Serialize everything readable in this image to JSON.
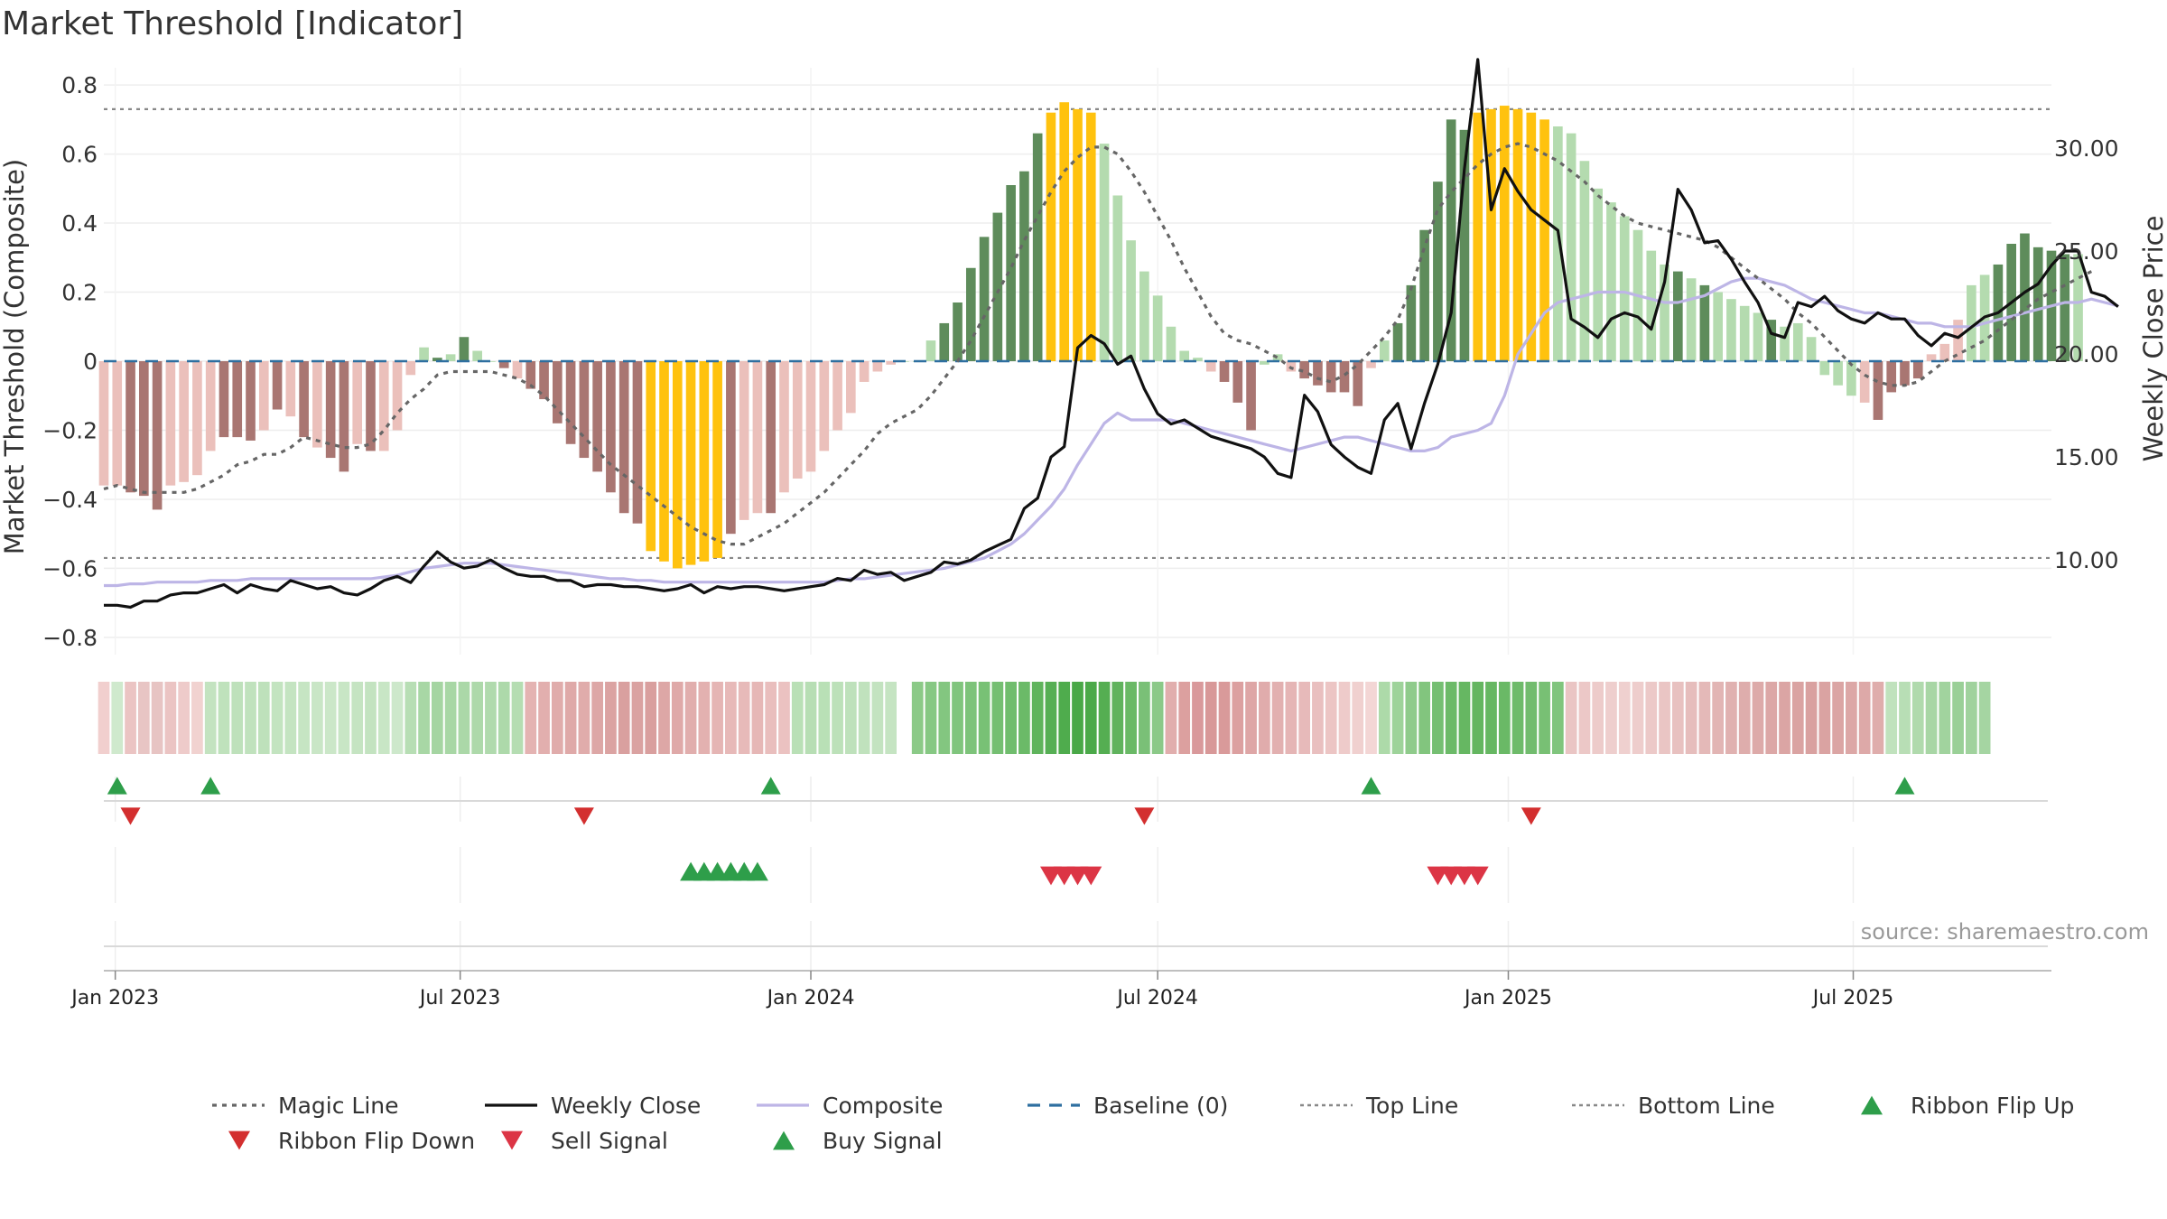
{
  "title": "Market Threshold [Indicator]",
  "source": "source: sharemaestro.com",
  "colors": {
    "bar_red_dark": "#A97672",
    "bar_red_light": "#EBC0BB",
    "bar_green_dark": "#5E8C5B",
    "bar_green_light": "#B4DBAF",
    "bar_gold": "#FFC20E",
    "magic_line": "#666666",
    "weekly_close": "#111111",
    "composite": "#BDB5E6",
    "baseline": "#2E6FA0",
    "threshold_line": "#888888",
    "ribbon_green": "#3EA555",
    "ribbon_red": "#D27E80",
    "flip_up": "#2E9E4A",
    "flip_down": "#D32F2F",
    "sell": "#DC3545",
    "buy": "#2E9E4A"
  },
  "chart_data": {
    "type": "bar",
    "title": "Market Threshold [Indicator]",
    "ylabel": "Market Threshold (Composite)",
    "y2label": "Weekly Close Price",
    "ylim": [
      -0.85,
      0.85
    ],
    "y2lim": [
      5.4,
      33.9
    ],
    "yticks": [
      -0.8,
      -0.6,
      -0.4,
      -0.2,
      0,
      0.2,
      0.4,
      0.6,
      0.8
    ],
    "ytick_labels": [
      "−0.8",
      "−0.6",
      "−0.4",
      "−0.2",
      "0",
      "0.2",
      "0.4",
      "0.6",
      "0.8"
    ],
    "y2ticks": [
      10,
      15,
      20,
      25,
      30
    ],
    "y2tick_labels": [
      "10.00",
      "15.00",
      "20.00",
      "25.00",
      "30.00"
    ],
    "xlim": [
      "2022-12-26",
      "2025-10-13"
    ],
    "xticks": [
      "2023-01-01",
      "2023-07-01",
      "2024-01-01",
      "2024-07-01",
      "2025-01-01",
      "2025-07-01"
    ],
    "xtick_labels": [
      "Jan 2023",
      "Jul 2023",
      "Jan 2024",
      "Jul 2024",
      "Jan 2025",
      "Jul 2025"
    ],
    "start_date": "2022-12-26",
    "week_step_days": 7,
    "top_line": 0.73,
    "bottom_line": -0.57,
    "bars": [
      -0.36,
      -0.36,
      -0.38,
      -0.39,
      -0.43,
      -0.36,
      -0.35,
      -0.33,
      -0.26,
      -0.22,
      -0.22,
      -0.23,
      -0.2,
      -0.14,
      -0.16,
      -0.22,
      -0.25,
      -0.28,
      -0.32,
      -0.24,
      -0.26,
      -0.26,
      -0.2,
      -0.04,
      0.04,
      0.01,
      0.02,
      0.07,
      0.03,
      0.0,
      -0.02,
      -0.05,
      -0.08,
      -0.11,
      -0.18,
      -0.24,
      -0.28,
      -0.32,
      -0.38,
      -0.44,
      -0.47,
      -0.55,
      -0.58,
      -0.6,
      -0.59,
      -0.58,
      -0.57,
      -0.5,
      -0.46,
      -0.44,
      -0.44,
      -0.38,
      -0.34,
      -0.32,
      -0.26,
      -0.2,
      -0.15,
      -0.06,
      -0.03,
      -0.01,
      0.0,
      0.0,
      0.06,
      0.11,
      0.17,
      0.27,
      0.36,
      0.43,
      0.51,
      0.55,
      0.66,
      0.72,
      0.75,
      0.73,
      0.72,
      0.63,
      0.48,
      0.35,
      0.26,
      0.19,
      0.1,
      0.03,
      0.01,
      -0.03,
      -0.06,
      -0.12,
      -0.2,
      -0.01,
      0.02,
      -0.03,
      -0.05,
      -0.07,
      -0.09,
      -0.09,
      -0.13,
      -0.02,
      0.06,
      0.11,
      0.22,
      0.38,
      0.52,
      0.7,
      0.67,
      0.72,
      0.73,
      0.74,
      0.73,
      0.72,
      0.7,
      0.68,
      0.66,
      0.58,
      0.5,
      0.46,
      0.42,
      0.38,
      0.32,
      0.28,
      0.26,
      0.24,
      0.22,
      0.2,
      0.18,
      0.16,
      0.14,
      0.12,
      0.1,
      0.11,
      0.07,
      -0.04,
      -0.07,
      -0.1,
      -0.12,
      -0.17,
      -0.09,
      -0.07,
      -0.05,
      0.02,
      0.05,
      0.12,
      0.22,
      0.25,
      0.28,
      0.34,
      0.37,
      0.33,
      0.32,
      0.31,
      0.31
    ],
    "bar_colors": [
      "r",
      "r",
      "R",
      "R",
      "R",
      "r",
      "r",
      "r",
      "r",
      "R",
      "R",
      "R",
      "r",
      "R",
      "r",
      "R",
      "r",
      "R",
      "R",
      "r",
      "R",
      "r",
      "r",
      "r",
      "g",
      "G",
      "g",
      "G",
      "g",
      "g",
      "R",
      "r",
      "R",
      "R",
      "R",
      "R",
      "R",
      "R",
      "R",
      "R",
      "R",
      "Y",
      "Y",
      "Y",
      "Y",
      "Y",
      "Y",
      "R",
      "r",
      "r",
      "R",
      "r",
      "r",
      "r",
      "r",
      "r",
      "r",
      "r",
      "r",
      "r",
      "g",
      "g",
      "g",
      "G",
      "G",
      "G",
      "G",
      "G",
      "G",
      "G",
      "G",
      "Y",
      "Y",
      "Y",
      "Y",
      "g",
      "g",
      "g",
      "g",
      "g",
      "g",
      "g",
      "g",
      "r",
      "R",
      "R",
      "R",
      "g",
      "g",
      "r",
      "R",
      "R",
      "R",
      "R",
      "R",
      "r",
      "g",
      "G",
      "G",
      "G",
      "G",
      "G",
      "G",
      "Y",
      "Y",
      "Y",
      "Y",
      "Y",
      "Y",
      "g",
      "g",
      "g",
      "g",
      "g",
      "g",
      "g",
      "g",
      "g",
      "G",
      "g",
      "G",
      "g",
      "g",
      "g",
      "g",
      "G",
      "g",
      "g",
      "g",
      "g",
      "g",
      "g",
      "r",
      "R",
      "R",
      "R",
      "R",
      "r",
      "r",
      "r",
      "g",
      "g",
      "G",
      "G",
      "G",
      "G",
      "G",
      "G",
      "g",
      "g",
      "g",
      "g"
    ],
    "series": [
      {
        "name": "Magic Line",
        "values": [
          -0.37,
          -0.36,
          -0.37,
          -0.38,
          -0.38,
          -0.38,
          -0.38,
          -0.37,
          -0.35,
          -0.33,
          -0.3,
          -0.29,
          -0.27,
          -0.27,
          -0.25,
          -0.22,
          -0.23,
          -0.24,
          -0.25,
          -0.25,
          -0.24,
          -0.2,
          -0.15,
          -0.11,
          -0.08,
          -0.04,
          -0.03,
          -0.03,
          -0.03,
          -0.03,
          -0.04,
          -0.05,
          -0.07,
          -0.1,
          -0.14,
          -0.18,
          -0.22,
          -0.26,
          -0.3,
          -0.33,
          -0.36,
          -0.39,
          -0.42,
          -0.45,
          -0.48,
          -0.5,
          -0.52,
          -0.53,
          -0.53,
          -0.51,
          -0.49,
          -0.47,
          -0.44,
          -0.41,
          -0.38,
          -0.34,
          -0.3,
          -0.26,
          -0.21,
          -0.18,
          -0.16,
          -0.14,
          -0.1,
          -0.05,
          0.0,
          0.06,
          0.13,
          0.2,
          0.27,
          0.35,
          0.42,
          0.49,
          0.55,
          0.59,
          0.62,
          0.62,
          0.6,
          0.55,
          0.49,
          0.42,
          0.35,
          0.27,
          0.2,
          0.13,
          0.08,
          0.06,
          0.05,
          0.03,
          0.01,
          -0.02,
          -0.03,
          -0.05,
          -0.06,
          -0.04,
          -0.01,
          0.03,
          0.07,
          0.12,
          0.21,
          0.33,
          0.44,
          0.49,
          0.53,
          0.57,
          0.6,
          0.62,
          0.63,
          0.62,
          0.6,
          0.58,
          0.55,
          0.52,
          0.48,
          0.45,
          0.42,
          0.4,
          0.39,
          0.38,
          0.37,
          0.36,
          0.35,
          0.33,
          0.3,
          0.27,
          0.24,
          0.21,
          0.18,
          0.14,
          0.11,
          0.07,
          0.03,
          -0.01,
          -0.04,
          -0.06,
          -0.07,
          -0.07,
          -0.06,
          -0.03,
          0.0,
          0.02,
          0.04,
          0.06,
          0.09,
          0.12,
          0.15,
          0.18,
          0.2,
          0.22,
          0.24,
          0.26
        ]
      },
      {
        "name": "Weekly Close",
        "values": [
          7.8,
          7.8,
          7.7,
          8.0,
          8.0,
          8.3,
          8.4,
          8.4,
          8.6,
          8.8,
          8.4,
          8.8,
          8.6,
          8.5,
          9.0,
          8.8,
          8.6,
          8.7,
          8.4,
          8.3,
          8.6,
          9.0,
          9.2,
          8.9,
          9.7,
          10.4,
          9.9,
          9.6,
          9.7,
          10.0,
          9.6,
          9.3,
          9.2,
          9.2,
          9.0,
          9.0,
          8.7,
          8.8,
          8.8,
          8.7,
          8.7,
          8.6,
          8.5,
          8.6,
          8.8,
          8.4,
          8.7,
          8.6,
          8.7,
          8.7,
          8.6,
          8.5,
          8.6,
          8.7,
          8.8,
          9.1,
          9.0,
          9.5,
          9.3,
          9.4,
          9.0,
          9.2,
          9.4,
          9.9,
          9.8,
          10.0,
          10.4,
          10.7,
          11.0,
          12.5,
          13.0,
          15.0,
          15.5,
          20.3,
          20.9,
          20.5,
          19.5,
          19.9,
          18.3,
          17.1,
          16.6,
          16.8,
          16.4,
          16.0,
          15.8,
          15.6,
          15.4,
          15.0,
          14.2,
          14.0,
          18.0,
          17.2,
          15.6,
          15.0,
          14.5,
          14.2,
          16.8,
          17.6,
          15.4,
          17.6,
          19.5,
          22.0,
          29.0,
          34.3,
          27.0,
          29.0,
          27.9,
          27.0,
          26.5,
          26.0,
          21.7,
          21.3,
          20.8,
          21.7,
          22.0,
          21.8,
          21.2,
          23.5,
          28.0,
          27.0,
          25.4,
          25.5,
          24.6,
          23.5,
          22.5,
          21.0,
          20.8,
          22.5,
          22.3,
          22.8,
          22.1,
          21.7,
          21.5,
          22.0,
          21.7,
          21.7,
          20.9,
          20.4,
          21.0,
          20.8,
          21.3,
          21.8,
          22.0,
          22.5,
          23.0,
          23.4,
          24.3,
          25.0,
          25.0,
          23.0,
          22.8,
          22.3
        ]
      },
      {
        "name": "Composite",
        "values": [
          -0.65,
          -0.65,
          -0.645,
          -0.645,
          -0.64,
          -0.64,
          -0.64,
          -0.64,
          -0.635,
          -0.635,
          -0.635,
          -0.63,
          -0.63,
          -0.63,
          -0.63,
          -0.63,
          -0.63,
          -0.63,
          -0.63,
          -0.63,
          -0.63,
          -0.625,
          -0.62,
          -0.61,
          -0.6,
          -0.595,
          -0.59,
          -0.585,
          -0.585,
          -0.585,
          -0.59,
          -0.595,
          -0.6,
          -0.605,
          -0.61,
          -0.615,
          -0.62,
          -0.625,
          -0.63,
          -0.63,
          -0.635,
          -0.635,
          -0.64,
          -0.64,
          -0.64,
          -0.64,
          -0.64,
          -0.64,
          -0.64,
          -0.64,
          -0.64,
          -0.64,
          -0.64,
          -0.64,
          -0.64,
          -0.635,
          -0.63,
          -0.63,
          -0.625,
          -0.62,
          -0.615,
          -0.61,
          -0.605,
          -0.6,
          -0.59,
          -0.58,
          -0.57,
          -0.55,
          -0.53,
          -0.5,
          -0.46,
          -0.42,
          -0.37,
          -0.3,
          -0.24,
          -0.18,
          -0.15,
          -0.17,
          -0.17,
          -0.17,
          -0.17,
          -0.18,
          -0.19,
          -0.2,
          -0.21,
          -0.22,
          -0.23,
          -0.24,
          -0.25,
          -0.26,
          -0.25,
          -0.24,
          -0.23,
          -0.22,
          -0.22,
          -0.23,
          -0.24,
          -0.25,
          -0.26,
          -0.26,
          -0.25,
          -0.22,
          -0.21,
          -0.2,
          -0.18,
          -0.1,
          0.02,
          0.08,
          0.14,
          0.17,
          0.18,
          0.19,
          0.2,
          0.2,
          0.2,
          0.19,
          0.18,
          0.17,
          0.17,
          0.18,
          0.19,
          0.21,
          0.23,
          0.24,
          0.24,
          0.23,
          0.22,
          0.2,
          0.18,
          0.17,
          0.16,
          0.15,
          0.14,
          0.14,
          0.13,
          0.12,
          0.11,
          0.11,
          0.1,
          0.1,
          0.1,
          0.11,
          0.12,
          0.13,
          0.14,
          0.15,
          0.16,
          0.17,
          0.17,
          0.18,
          0.17,
          0.16
        ]
      }
    ],
    "ribbon_colors": [
      "#F1CFCE",
      "#CFE9CD",
      "#EBC4C3",
      "#E8C5C4",
      "#E7C4C3",
      "#EBC4C3",
      "#EECBCA",
      "#F1D2D0",
      "#C3E3C0",
      "#BFE2BC",
      "#BEE1BB",
      "#C0E2BD",
      "#BEE1BB",
      "#C3E4C0",
      "#C4E4C1",
      "#C6E5C3",
      "#C9E6C6",
      "#CBE7C8",
      "#C8E6C5",
      "#C5E4C2",
      "#C3E3C0",
      "#C8E6C5",
      "#CDE8CB",
      "#B7DEB4",
      "#A8D7A5",
      "#A5D5A2",
      "#A8D7A5",
      "#ABD8A8",
      "#ADD9AA",
      "#B0DAAD",
      "#ADD9AA",
      "#B5DDB2",
      "#E4B3B2",
      "#E2AFAE",
      "#E0ACAB",
      "#DFA9A8",
      "#E0ACAB",
      "#DDA7A6",
      "#DBA3A2",
      "#D9A09F",
      "#DAA2A1",
      "#D99F9E",
      "#DDA7A6",
      "#DFA9A8",
      "#E1AEAD",
      "#E3B1B0",
      "#E5B5B4",
      "#E7B9B8",
      "#E7BAB9",
      "#E6B7B6",
      "#E9BEBD",
      "#EBC2C1",
      "#B9E0B6",
      "#B7DEB4",
      "#B9E0B6",
      "#BCE1B9",
      "#BEE1BB",
      "#C0E2BD",
      "#C3E3C0",
      "#C5E4C2",
      "#FFFFFF",
      "#8BCA87",
      "#86C883",
      "#83C680",
      "#80C57D",
      "#7DC37A",
      "#78C175",
      "#75BF72",
      "#70BD6D",
      "#6BBA68",
      "#5FB45C",
      "#56AF54",
      "#4FAC4D",
      "#49A847",
      "#4BA949",
      "#55AE52",
      "#60B35D",
      "#6AB966",
      "#7AC077",
      "#8BC988",
      "#E1AEAD",
      "#DCA09F",
      "#D9999B",
      "#D89898",
      "#D99A9A",
      "#DCA0A0",
      "#DEA6A6",
      "#E0ACAC",
      "#E2B0B0",
      "#E5B5B5",
      "#E7BABA",
      "#E9BFBF",
      "#ECC5C4",
      "#EECBCA",
      "#F0D0CF",
      "#F3D6D5",
      "#ADDAA9",
      "#9ED39A",
      "#8FCB8B",
      "#82C57E",
      "#75BF72",
      "#6CBA68",
      "#66B762",
      "#64B660",
      "#66B762",
      "#6AB966",
      "#6EBB6A",
      "#72BC6E",
      "#78C074",
      "#80C57D",
      "#EAC5C4",
      "#ECC8C7",
      "#EDCBCA",
      "#EECECD",
      "#EFD0CF",
      "#EECDCC",
      "#ECC9C8",
      "#EAC5C4",
      "#E8C1C0",
      "#E6BDBC",
      "#E4B9B8",
      "#E2B5B4",
      "#E0B1B0",
      "#DEADAC",
      "#DDAAA9",
      "#DCA7A6",
      "#DBA5A4",
      "#DAA3A2",
      "#D9A1A0",
      "#DAA3A2",
      "#DBA5A4",
      "#DCA7A6",
      "#DDA9A8",
      "#DFADAC",
      "#C0E2BD",
      "#B8DEB5",
      "#B0DAAD",
      "#A8D6A5",
      "#A1D39E",
      "#9AD097",
      "#A0D29D",
      "#A5D5A2"
    ],
    "ribbon_flip_up": [
      "2023-01-02",
      "2023-02-20",
      "2023-12-11",
      "2024-10-21",
      "2025-07-28"
    ],
    "ribbon_flip_down": [
      "2023-01-09",
      "2023-09-04",
      "2024-06-24",
      "2025-01-13"
    ],
    "buy_signals": [
      "2023-10-30",
      "2023-11-06",
      "2023-11-13",
      "2023-11-20",
      "2023-11-27",
      "2023-12-04"
    ],
    "sell_signals": [
      "2024-05-06",
      "2024-05-13",
      "2024-05-20",
      "2024-05-27",
      "2024-11-25",
      "2024-12-02",
      "2024-12-09",
      "2024-12-16"
    ],
    "legend": [
      {
        "label": "Magic Line",
        "kind": "dotted",
        "color": "#666666"
      },
      {
        "label": "Weekly Close",
        "kind": "solid",
        "color": "#111111"
      },
      {
        "label": "Composite",
        "kind": "solid-light",
        "color": "#BDB5E6"
      },
      {
        "label": "Baseline (0)",
        "kind": "dashed",
        "color": "#2E6FA0"
      },
      {
        "label": "Top Line",
        "kind": "dotted-light",
        "color": "#888888"
      },
      {
        "label": "Bottom Line",
        "kind": "dotted-light",
        "color": "#888888"
      },
      {
        "label": "Ribbon Flip Up",
        "kind": "tri-up",
        "color": "#2E9E4A"
      },
      {
        "label": "Ribbon Flip Down",
        "kind": "tri-down",
        "color": "#D32F2F"
      },
      {
        "label": "Sell Signal",
        "kind": "tri-down",
        "color": "#DC3545"
      },
      {
        "label": "Buy Signal",
        "kind": "tri-up",
        "color": "#2E9E4A"
      }
    ]
  }
}
